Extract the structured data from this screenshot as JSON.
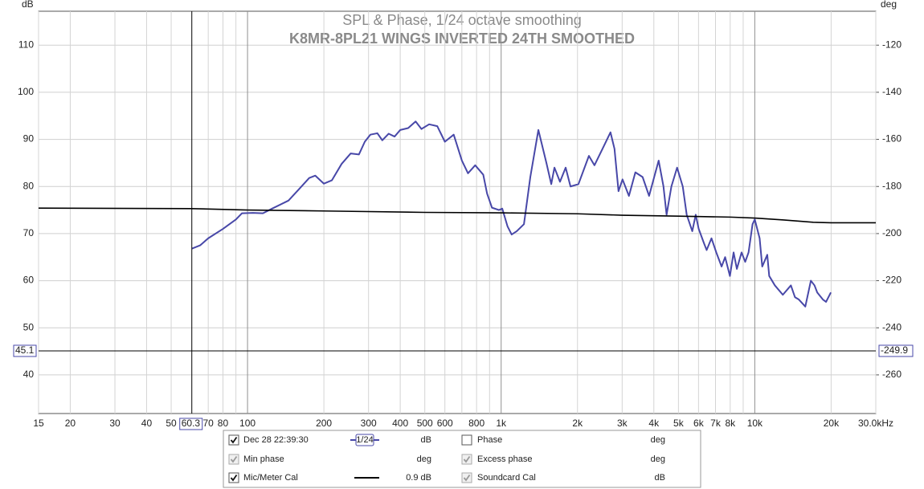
{
  "chart_data": {
    "type": "line",
    "title": "SPL & Phase, 1/24 octave smoothing",
    "subtitle": "K8MR-8PL21 WINGS INVERTED 24TH SMOOTHED",
    "y_label": "dB",
    "y2_label": "deg",
    "xscale": "log",
    "xlim": [
      15,
      30000
    ],
    "ylim": [
      31.8,
      117.2
    ],
    "y2lim": [
      -276.4,
      -105.6
    ],
    "xticks": [
      15,
      20,
      30,
      40,
      50,
      70,
      80,
      100,
      200,
      300,
      400,
      500,
      600,
      800,
      {
        "value": 1000,
        "label": "1k"
      },
      {
        "value": 2000,
        "label": "2k"
      },
      {
        "value": 3000,
        "label": "3k"
      },
      {
        "value": 4000,
        "label": "4k"
      },
      {
        "value": 5000,
        "label": "5k"
      },
      {
        "value": 6000,
        "label": "6k"
      },
      {
        "value": 7000,
        "label": "7k"
      },
      {
        "value": 8000,
        "label": "8k"
      },
      {
        "value": 10000,
        "label": "10k"
      },
      {
        "value": 20000,
        "label": "20k"
      },
      {
        "value": 30000,
        "label": "30.0kHz"
      }
    ],
    "xgrid_minor": [
      90,
      700,
      900,
      9000
    ],
    "yticks": [
      40,
      50,
      60,
      70,
      80,
      90,
      100,
      110
    ],
    "y2ticks": [
      -260,
      -240,
      -220,
      -200,
      -180,
      -160,
      -140,
      -120
    ],
    "grid": true,
    "cursor": {
      "x": 60.3,
      "y": 45.1,
      "y2": -249.9
    },
    "series": [
      {
        "name": "Dec 28 22:39:30",
        "color": "#4848a8",
        "x": [
          60.3,
          65,
          70,
          80,
          90,
          95,
          105,
          115,
          125,
          145,
          160,
          175,
          185,
          200,
          215,
          235,
          255,
          275,
          290,
          305,
          325,
          340,
          360,
          380,
          400,
          430,
          460,
          485,
          520,
          560,
          600,
          650,
          700,
          740,
          790,
          850,
          880,
          920,
          980,
          1010,
          1060,
          1100,
          1152,
          1230,
          1303,
          1402,
          1508,
          1576,
          1622,
          1706,
          1796,
          1877,
          2017,
          2218,
          2333,
          2510,
          2698,
          2798,
          2902,
          3010,
          3190,
          3382,
          3612,
          3830,
          4178,
          4365,
          4490,
          4690,
          4940,
          5200,
          5390,
          5670,
          5850,
          6010,
          6300,
          6460,
          6750,
          7050,
          7400,
          7640,
          7980,
          8250,
          8500,
          8870,
          9170,
          9450,
          9800,
          10000,
          10450,
          10700,
          11200,
          11400,
          12000,
          12900,
          13880,
          14400,
          14920,
          15820,
          16640,
          17200,
          17630,
          18560,
          19100,
          19950
        ],
        "values": [
          66.8,
          67.5,
          69,
          71,
          73,
          74.3,
          74.4,
          74.3,
          75.3,
          77,
          79.5,
          81.8,
          82.3,
          80.6,
          81.3,
          84.8,
          87,
          86.8,
          89.5,
          91,
          91.3,
          89.8,
          91.2,
          90.6,
          92,
          92.4,
          93.8,
          92.2,
          93.2,
          92.8,
          89.5,
          91,
          85.5,
          82.8,
          84.5,
          82.5,
          78.5,
          75.5,
          75,
          75.3,
          71.5,
          69.8,
          70.5,
          72,
          82,
          92,
          85,
          80.5,
          84,
          81,
          84,
          80,
          80.5,
          86.5,
          84.5,
          88,
          91.5,
          88,
          79,
          81.5,
          78,
          83,
          82,
          78,
          85.5,
          80,
          74,
          80,
          84,
          80,
          74,
          70.5,
          74,
          71,
          68,
          66.5,
          69,
          66,
          63,
          65,
          61,
          66,
          62.5,
          66,
          64,
          66,
          72,
          73,
          69,
          63,
          65.5,
          61,
          59,
          57,
          59,
          56.5,
          56,
          54.5,
          60,
          59,
          57.5,
          56,
          55.5,
          57.5
        ]
      },
      {
        "name": "Mic/Meter Cal",
        "color": "#000000",
        "x": [
          15,
          60,
          100,
          200,
          500,
          1000,
          2000,
          3000,
          5000,
          8000,
          10000,
          13000,
          17000,
          20000,
          30000
        ],
        "values": [
          75.4,
          75.3,
          75.0,
          74.8,
          74.5,
          74.4,
          74.2,
          73.9,
          73.7,
          73.5,
          73.3,
          72.9,
          72.4,
          72.3,
          72.3
        ]
      }
    ]
  },
  "legend_panel": {
    "rows": [
      {
        "left": {
          "checked": true,
          "disabled": false,
          "smoothing": "1/24",
          "unit": "dB"
        },
        "right": {
          "label": "Phase",
          "checked": false,
          "disabled": false,
          "unit": "deg"
        }
      },
      {
        "left": {
          "label": "Min phase",
          "checked": true,
          "disabled": true,
          "unit": "deg"
        },
        "right": {
          "label": "Excess phase",
          "checked": true,
          "disabled": true,
          "unit": "deg"
        }
      },
      {
        "left": {
          "checked": true,
          "disabled": false,
          "value_text": "0.9 dB"
        },
        "right": {
          "label": "Soundcard Cal",
          "checked": true,
          "disabled": true,
          "unit": "dB"
        }
      }
    ]
  }
}
